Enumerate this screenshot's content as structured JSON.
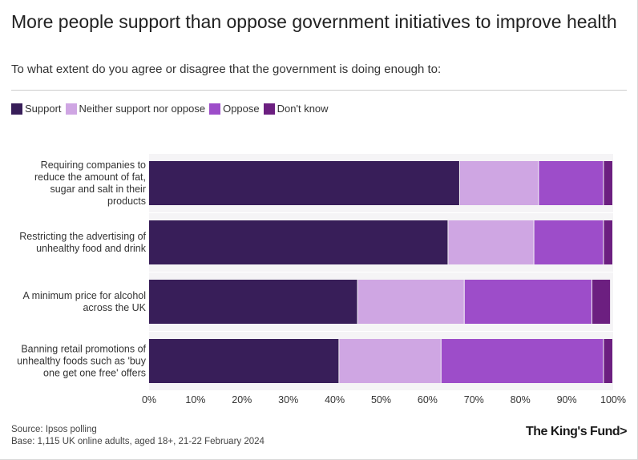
{
  "chart_data": {
    "type": "bar",
    "orientation": "horizontal",
    "stacked": true,
    "title": "More people support than oppose government initiatives to improve health",
    "subtitle": "To what extent do you agree or disagree that the government is doing enough to:",
    "categories": [
      "Requiring companies to reduce the amount of fat, sugar and salt in their products",
      "Restricting the advertising of unhealthy food and drink",
      "A minimum price for alcohol across the UK",
      "Banning retail promotions of unhealthy foods such as 'buy one get one free' offers"
    ],
    "category_lines": [
      [
        "Requiring companies to",
        "reduce the amount of fat,",
        "sugar and salt in their",
        "products"
      ],
      [
        "Restricting the advertising of",
        "unhealthy food and drink"
      ],
      [
        "A minimum price for alcohol",
        "across the UK"
      ],
      [
        "Banning retail promotions of",
        "unhealthy foods such as 'buy",
        "one get one free' offers"
      ]
    ],
    "series": [
      {
        "name": "Support",
        "color": "#381e59",
        "values": [
          67,
          64.5,
          45,
          41
        ]
      },
      {
        "name": "Neither support nor oppose",
        "color": "#cfa6e3",
        "values": [
          17,
          18.5,
          23,
          22
        ]
      },
      {
        "name": "Oppose",
        "color": "#9d4dc9",
        "values": [
          14,
          15,
          27.5,
          35
        ]
      },
      {
        "name": "Don't know",
        "color": "#6c1f80",
        "values": [
          2,
          2,
          4,
          2
        ]
      }
    ],
    "xlim": [
      0,
      100
    ],
    "xticks": [
      "0%",
      "10%",
      "20%",
      "30%",
      "40%",
      "50%",
      "60%",
      "70%",
      "80%",
      "90%",
      "100%"
    ],
    "legend_position": "top-left"
  },
  "footer": {
    "source": "Source: Ipsos polling",
    "base": "Base: 1,115 UK online adults, aged 18+, 21-22 February 2024",
    "logo": "The King's Fund>"
  }
}
